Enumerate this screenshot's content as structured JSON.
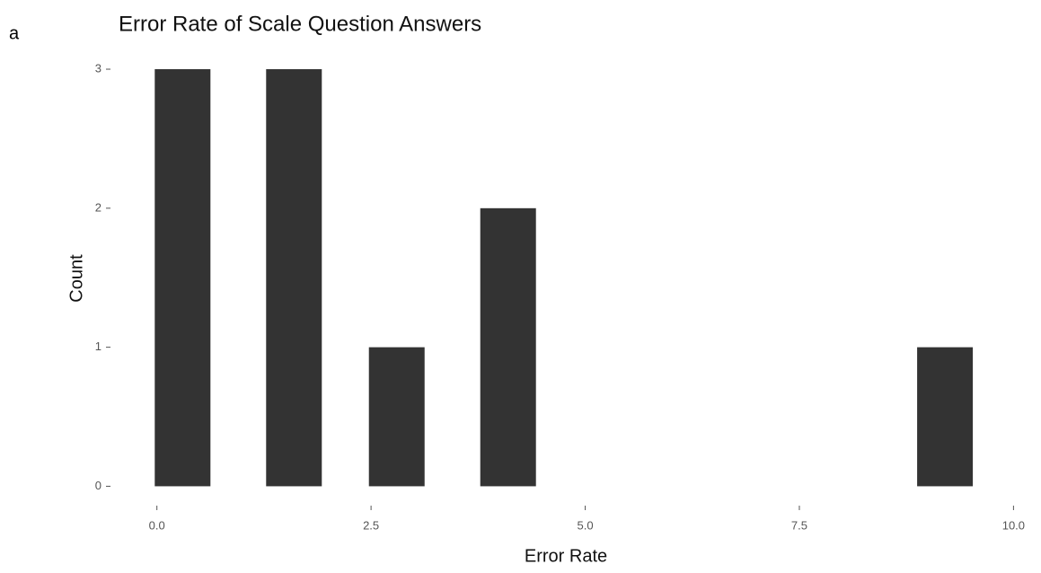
{
  "panel_label": "a",
  "chart_data": {
    "type": "bar",
    "title": "Error Rate of Scale Question Answers",
    "x_label": "Error Rate",
    "y_label": "Count",
    "x": [
      0.3,
      1.6,
      2.8,
      4.1,
      9.2
    ],
    "values": [
      3,
      3,
      1,
      2,
      1
    ],
    "color": "#333333",
    "xlim": [
      -0.5,
      10.3
    ],
    "xticks": [
      {
        "value": 0,
        "label": "0.0"
      },
      2.5,
      {
        "value": 5,
        "label": "5.0"
      },
      7.5,
      {
        "value": 10,
        "label": "10.0"
      }
    ],
    "ylim": [
      -0.12,
      3.11
    ],
    "yticks": [
      0,
      1,
      2,
      3
    ],
    "grid": false
  }
}
